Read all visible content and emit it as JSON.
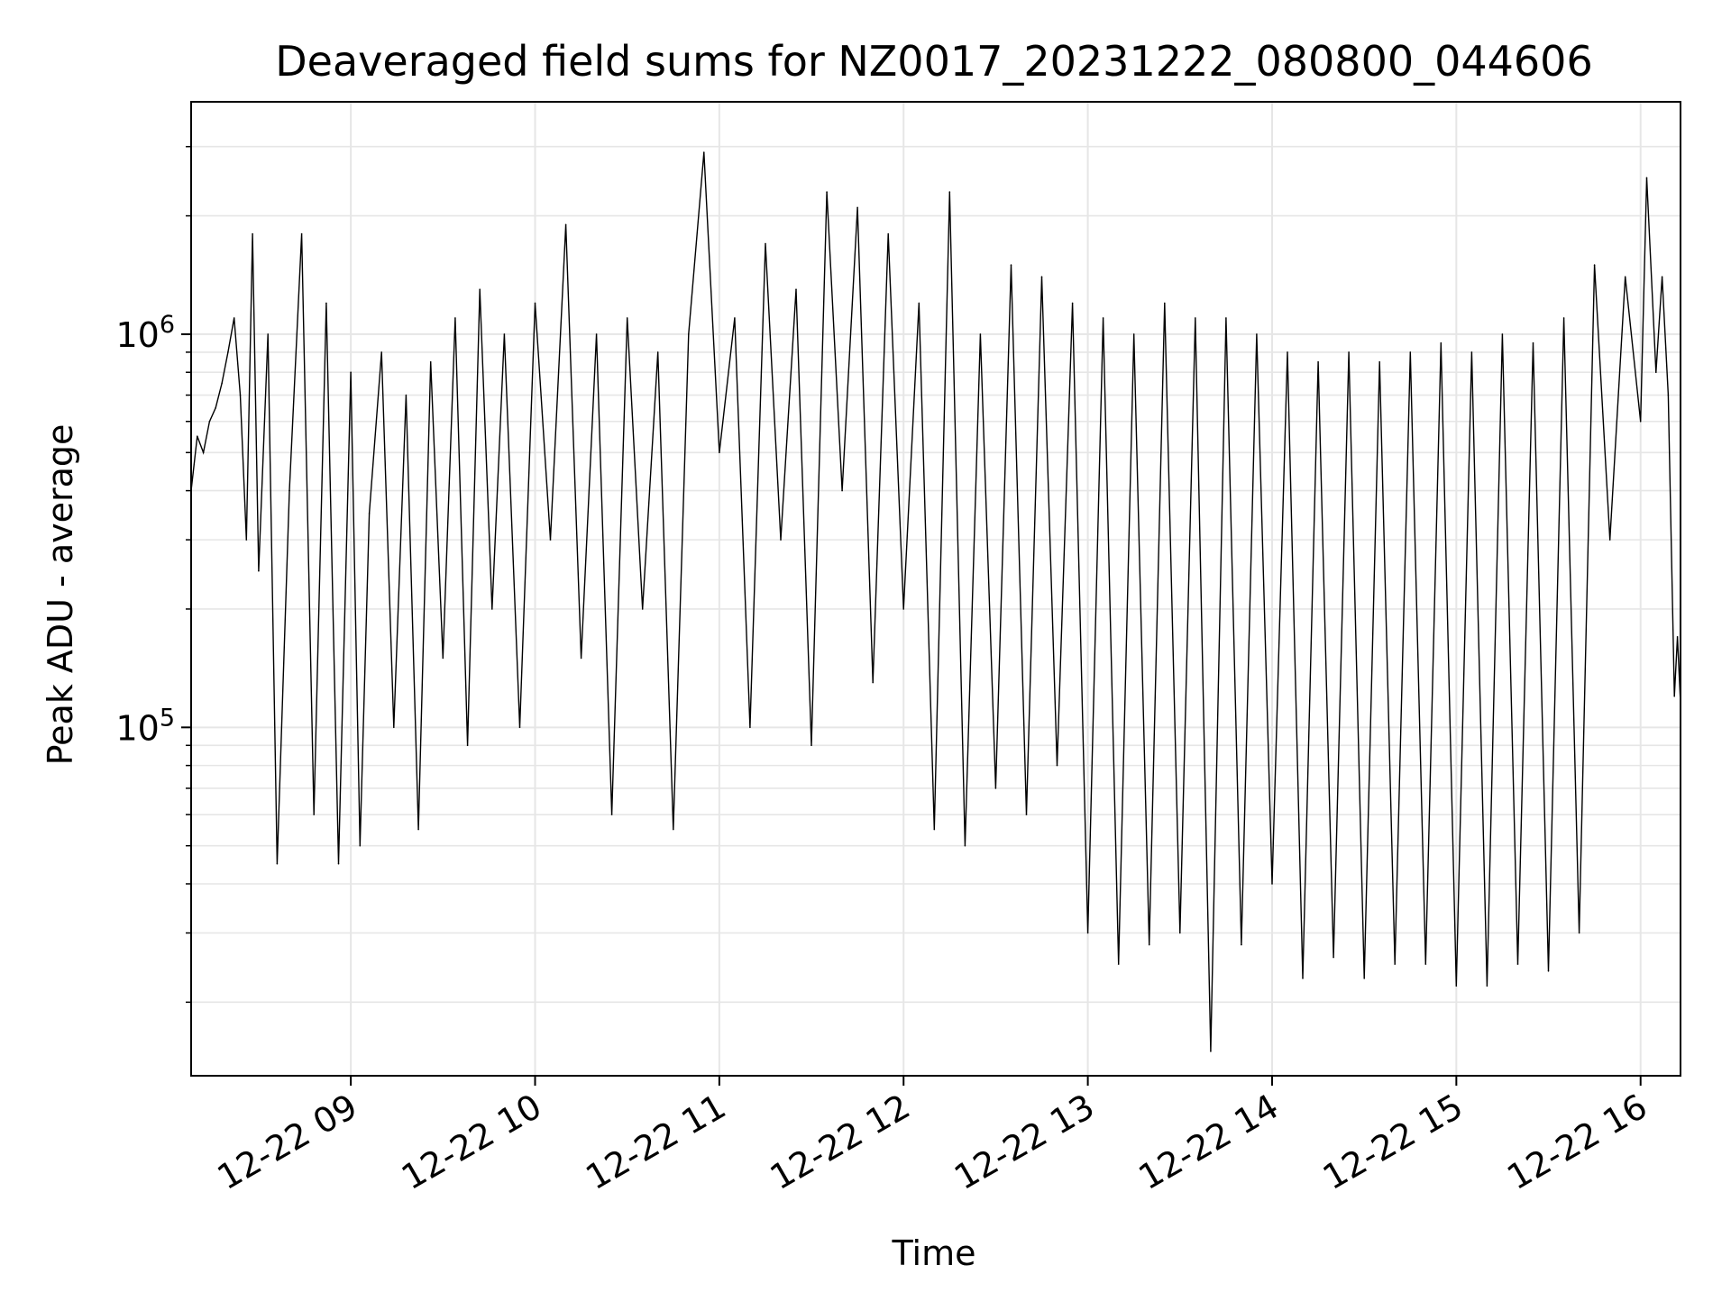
{
  "chart_data": {
    "type": "line",
    "title": "Deaveraged field sums for NZ0017_20231222_080800_044606",
    "xlabel": "Time",
    "ylabel": "Peak ADU - average",
    "yscale": "log",
    "y_ticks": [
      {
        "value": 100000,
        "base": "10",
        "exp": "5"
      },
      {
        "value": 1000000,
        "base": "10",
        "exp": "6"
      }
    ],
    "x_ticks": [
      {
        "value": "2023-12-22 09:00",
        "label": "12-22 09"
      },
      {
        "value": "2023-12-22 10:00",
        "label": "12-22 10"
      },
      {
        "value": "2023-12-22 11:00",
        "label": "12-22 11"
      },
      {
        "value": "2023-12-22 12:00",
        "label": "12-22 12"
      },
      {
        "value": "2023-12-22 13:00",
        "label": "12-22 13"
      },
      {
        "value": "2023-12-22 14:00",
        "label": "12-22 14"
      },
      {
        "value": "2023-12-22 15:00",
        "label": "12-22 15"
      },
      {
        "value": "2023-12-22 16:00",
        "label": "12-22 16"
      }
    ],
    "xlim": [
      "2023-12-22 08:08",
      "2023-12-22 16:13"
    ],
    "ylim": [
      13000,
      3900000
    ],
    "grid": true,
    "line_color": "#000000",
    "grid_color": "#e6e6e6",
    "series": [
      {
        "points": [
          [
            "2023-12-22 08:08",
            400000
          ],
          [
            "2023-12-22 08:10",
            550000
          ],
          [
            "2023-12-22 08:12",
            500000
          ],
          [
            "2023-12-22 08:14",
            600000
          ],
          [
            "2023-12-22 08:16",
            650000
          ],
          [
            "2023-12-22 08:18",
            750000
          ],
          [
            "2023-12-22 08:20",
            900000
          ],
          [
            "2023-12-22 08:22",
            1100000
          ],
          [
            "2023-12-22 08:24",
            700000
          ],
          [
            "2023-12-22 08:26",
            300000
          ],
          [
            "2023-12-22 08:28",
            1800000
          ],
          [
            "2023-12-22 08:30",
            250000
          ],
          [
            "2023-12-22 08:33",
            1000000
          ],
          [
            "2023-12-22 08:36",
            45000
          ],
          [
            "2023-12-22 08:40",
            400000
          ],
          [
            "2023-12-22 08:44",
            1800000
          ],
          [
            "2023-12-22 08:48",
            60000
          ],
          [
            "2023-12-22 08:52",
            1200000
          ],
          [
            "2023-12-22 08:56",
            45000
          ],
          [
            "2023-12-22 09:00",
            800000
          ],
          [
            "2023-12-22 09:03",
            50000
          ],
          [
            "2023-12-22 09:06",
            350000
          ],
          [
            "2023-12-22 09:10",
            900000
          ],
          [
            "2023-12-22 09:14",
            100000
          ],
          [
            "2023-12-22 09:18",
            700000
          ],
          [
            "2023-12-22 09:22",
            55000
          ],
          [
            "2023-12-22 09:26",
            850000
          ],
          [
            "2023-12-22 09:30",
            150000
          ],
          [
            "2023-12-22 09:34",
            1100000
          ],
          [
            "2023-12-22 09:38",
            90000
          ],
          [
            "2023-12-22 09:42",
            1300000
          ],
          [
            "2023-12-22 09:46",
            200000
          ],
          [
            "2023-12-22 09:50",
            1000000
          ],
          [
            "2023-12-22 09:55",
            100000
          ],
          [
            "2023-12-22 10:00",
            1200000
          ],
          [
            "2023-12-22 10:05",
            300000
          ],
          [
            "2023-12-22 10:10",
            1900000
          ],
          [
            "2023-12-22 10:15",
            150000
          ],
          [
            "2023-12-22 10:20",
            1000000
          ],
          [
            "2023-12-22 10:25",
            60000
          ],
          [
            "2023-12-22 10:30",
            1100000
          ],
          [
            "2023-12-22 10:35",
            200000
          ],
          [
            "2023-12-22 10:40",
            900000
          ],
          [
            "2023-12-22 10:45",
            55000
          ],
          [
            "2023-12-22 10:50",
            1000000
          ],
          [
            "2023-12-22 10:55",
            2900000
          ],
          [
            "2023-12-22 11:00",
            500000
          ],
          [
            "2023-12-22 11:05",
            1100000
          ],
          [
            "2023-12-22 11:10",
            100000
          ],
          [
            "2023-12-22 11:15",
            1700000
          ],
          [
            "2023-12-22 11:20",
            300000
          ],
          [
            "2023-12-22 11:25",
            1300000
          ],
          [
            "2023-12-22 11:30",
            90000
          ],
          [
            "2023-12-22 11:35",
            2300000
          ],
          [
            "2023-12-22 11:40",
            400000
          ],
          [
            "2023-12-22 11:45",
            2100000
          ],
          [
            "2023-12-22 11:50",
            130000
          ],
          [
            "2023-12-22 11:55",
            1800000
          ],
          [
            "2023-12-22 12:00",
            200000
          ],
          [
            "2023-12-22 12:05",
            1200000
          ],
          [
            "2023-12-22 12:10",
            55000
          ],
          [
            "2023-12-22 12:15",
            2300000
          ],
          [
            "2023-12-22 12:20",
            50000
          ],
          [
            "2023-12-22 12:25",
            1000000
          ],
          [
            "2023-12-22 12:30",
            70000
          ],
          [
            "2023-12-22 12:35",
            1500000
          ],
          [
            "2023-12-22 12:40",
            60000
          ],
          [
            "2023-12-22 12:45",
            1400000
          ],
          [
            "2023-12-22 12:50",
            80000
          ],
          [
            "2023-12-22 12:55",
            1200000
          ],
          [
            "2023-12-22 13:00",
            30000
          ],
          [
            "2023-12-22 13:05",
            1100000
          ],
          [
            "2023-12-22 13:10",
            25000
          ],
          [
            "2023-12-22 13:15",
            1000000
          ],
          [
            "2023-12-22 13:20",
            28000
          ],
          [
            "2023-12-22 13:25",
            1200000
          ],
          [
            "2023-12-22 13:30",
            30000
          ],
          [
            "2023-12-22 13:35",
            1100000
          ],
          [
            "2023-12-22 13:40",
            15000
          ],
          [
            "2023-12-22 13:45",
            1100000
          ],
          [
            "2023-12-22 13:50",
            28000
          ],
          [
            "2023-12-22 13:55",
            1000000
          ],
          [
            "2023-12-22 14:00",
            40000
          ],
          [
            "2023-12-22 14:05",
            900000
          ],
          [
            "2023-12-22 14:10",
            23000
          ],
          [
            "2023-12-22 14:15",
            850000
          ],
          [
            "2023-12-22 14:20",
            26000
          ],
          [
            "2023-12-22 14:25",
            900000
          ],
          [
            "2023-12-22 14:30",
            23000
          ],
          [
            "2023-12-22 14:35",
            850000
          ],
          [
            "2023-12-22 14:40",
            25000
          ],
          [
            "2023-12-22 14:45",
            900000
          ],
          [
            "2023-12-22 14:50",
            25000
          ],
          [
            "2023-12-22 14:55",
            950000
          ],
          [
            "2023-12-22 15:00",
            22000
          ],
          [
            "2023-12-22 15:05",
            900000
          ],
          [
            "2023-12-22 15:10",
            22000
          ],
          [
            "2023-12-22 15:15",
            1000000
          ],
          [
            "2023-12-22 15:20",
            25000
          ],
          [
            "2023-12-22 15:25",
            950000
          ],
          [
            "2023-12-22 15:30",
            24000
          ],
          [
            "2023-12-22 15:35",
            1100000
          ],
          [
            "2023-12-22 15:40",
            30000
          ],
          [
            "2023-12-22 15:45",
            1500000
          ],
          [
            "2023-12-22 15:50",
            300000
          ],
          [
            "2023-12-22 15:55",
            1400000
          ],
          [
            "2023-12-22 16:00",
            600000
          ],
          [
            "2023-12-22 16:02",
            2500000
          ],
          [
            "2023-12-22 16:05",
            800000
          ],
          [
            "2023-12-22 16:07",
            1400000
          ],
          [
            "2023-12-22 16:09",
            700000
          ],
          [
            "2023-12-22 16:11",
            120000
          ],
          [
            "2023-12-22 16:12",
            170000
          ],
          [
            "2023-12-22 16:13",
            115000
          ]
        ]
      }
    ]
  }
}
